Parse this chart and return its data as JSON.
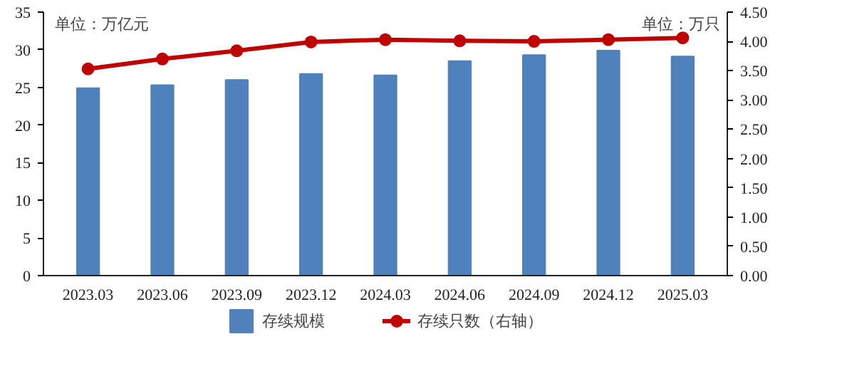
{
  "chart_data": {
    "type": "bar",
    "categories": [
      "2023.03",
      "2023.06",
      "2023.09",
      "2023.12",
      "2024.03",
      "2024.06",
      "2024.09",
      "2024.12",
      "2025.03"
    ],
    "series": [
      {
        "name": "存续规模",
        "color": "#4f81bd",
        "values": [
          24.9,
          25.3,
          26.0,
          26.8,
          26.6,
          28.5,
          29.3,
          29.9,
          29.1
        ]
      },
      {
        "name": "存续只数（右轴）",
        "type": "line",
        "axis": "y2",
        "color": "#c00000",
        "values": [
          3.53,
          3.7,
          3.84,
          3.99,
          4.03,
          4.01,
          4.0,
          4.03,
          4.06
        ]
      }
    ],
    "ylim": [
      0,
      35
    ],
    "yticks": [
      0,
      5,
      10,
      15,
      20,
      25,
      30,
      35
    ],
    "y2lim": [
      0,
      4.5
    ],
    "y2ticks": [
      {
        "value": 0,
        "label": "0.00"
      },
      {
        "value": 0.5,
        "label": "0.50"
      },
      {
        "value": 1,
        "label": "1.00"
      },
      {
        "value": 1.5,
        "label": "1.50"
      },
      {
        "value": 2,
        "label": "2.00"
      },
      {
        "value": 2.5,
        "label": "2.50"
      },
      {
        "value": 3,
        "label": "3.00"
      },
      {
        "value": 3.5,
        "label": "3.50"
      },
      {
        "value": 4,
        "label": "4.00"
      },
      {
        "value": 4.5,
        "label": "4.50"
      }
    ],
    "annotations": [
      "单位：万亿元",
      "单位：万只"
    ],
    "marker": "circle",
    "grid": false,
    "legend": "bottom"
  }
}
